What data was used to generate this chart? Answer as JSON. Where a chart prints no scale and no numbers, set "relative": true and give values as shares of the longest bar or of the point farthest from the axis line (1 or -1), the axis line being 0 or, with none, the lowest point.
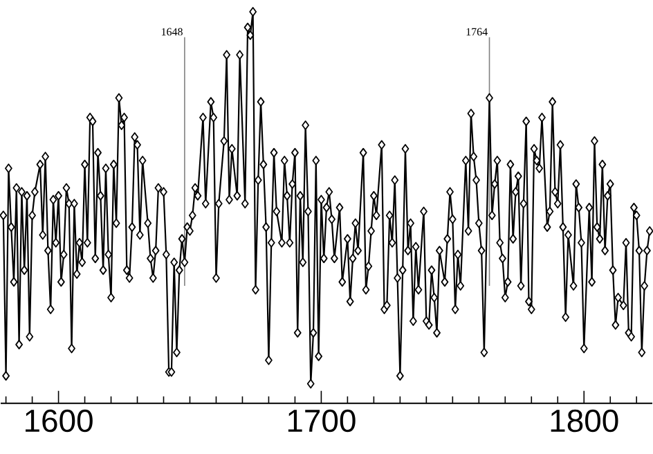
{
  "chart_data": {
    "type": "line",
    "relative": true,
    "color": "#000000",
    "marker": "diamond",
    "xlim": [
      1578,
      1826
    ],
    "xticks": [
      {
        "value": 1580,
        "label": null
      },
      {
        "value": 1590,
        "label": null
      },
      1600,
      {
        "value": 1610,
        "label": null
      },
      {
        "value": 1620,
        "label": null
      },
      {
        "value": 1630,
        "label": null
      },
      {
        "value": 1640,
        "label": null
      },
      {
        "value": 1650,
        "label": null
      },
      {
        "value": 1660,
        "label": null
      },
      {
        "value": 1670,
        "label": null
      },
      {
        "value": 1680,
        "label": null
      },
      {
        "value": 1690,
        "label": null
      },
      1700,
      {
        "value": 1710,
        "label": null
      },
      {
        "value": 1720,
        "label": null
      },
      {
        "value": 1730,
        "label": null
      },
      {
        "value": 1740,
        "label": null
      },
      {
        "value": 1750,
        "label": null
      },
      {
        "value": 1760,
        "label": null
      },
      {
        "value": 1770,
        "label": null
      },
      {
        "value": 1780,
        "label": null
      },
      {
        "value": 1790,
        "label": null
      },
      1800,
      {
        "value": 1810,
        "label": null
      },
      {
        "value": 1820,
        "label": null
      }
    ],
    "ref_lines": [
      {
        "axis": "x",
        "value": 1648,
        "label": "1648",
        "color": "#808080"
      },
      {
        "axis": "x",
        "value": 1764,
        "label": "1764",
        "color": "#808080"
      }
    ],
    "x": [
      1579,
      1580,
      1581,
      1582,
      1583,
      1584,
      1585,
      1586,
      1587,
      1588,
      1589,
      1590,
      1591,
      1593,
      1594,
      1595,
      1596,
      1597,
      1598,
      1599,
      1600,
      1601,
      1602,
      1603,
      1604,
      1605,
      1606,
      1607,
      1608,
      1609,
      1610,
      1611,
      1612,
      1613,
      1614,
      1615,
      1616,
      1617,
      1618,
      1619,
      1620,
      1621,
      1622,
      1623,
      1624,
      1625,
      1626,
      1627,
      1628,
      1629,
      1630,
      1631,
      1632,
      1634,
      1635,
      1636,
      1637,
      1638,
      1640,
      1641,
      1642,
      1643,
      1644,
      1645,
      1646,
      1647,
      1648,
      1649,
      1650,
      1651,
      1652,
      1653,
      1655,
      1656,
      1658,
      1659,
      1660,
      1661,
      1663,
      1664,
      1665,
      1666,
      1668,
      1669,
      1671,
      1672,
      1673,
      1674,
      1675,
      1676,
      1677,
      1678,
      1679,
      1680,
      1681,
      1682,
      1683,
      1685,
      1686,
      1687,
      1688,
      1689,
      1690,
      1691,
      1692,
      1693,
      1694,
      1695,
      1696,
      1697,
      1698,
      1699,
      1700,
      1701,
      1702,
      1703,
      1704,
      1705,
      1707,
      1708,
      1710,
      1711,
      1712,
      1713,
      1714,
      1716,
      1717,
      1718,
      1719,
      1720,
      1721,
      1723,
      1724,
      1725,
      1726,
      1727,
      1728,
      1729,
      1730,
      1731,
      1732,
      1733,
      1734,
      1735,
      1736,
      1737,
      1739,
      1740,
      1741,
      1742,
      1743,
      1744,
      1745,
      1747,
      1748,
      1749,
      1750,
      1751,
      1752,
      1753,
      1755,
      1756,
      1757,
      1758,
      1759,
      1760,
      1761,
      1762,
      1764,
      1765,
      1766,
      1767,
      1768,
      1769,
      1770,
      1771,
      1772,
      1773,
      1774,
      1775,
      1776,
      1777,
      1778,
      1779,
      1780,
      1781,
      1782,
      1783,
      1784,
      1786,
      1787,
      1788,
      1789,
      1790,
      1791,
      1792,
      1793,
      1794,
      1796,
      1797,
      1798,
      1799,
      1800,
      1802,
      1803,
      1804,
      1805,
      1806,
      1807,
      1808,
      1809,
      1810,
      1811,
      1812,
      1813,
      1815,
      1816,
      1817,
      1818,
      1819,
      1820,
      1821,
      1822,
      1823,
      1824,
      1825
    ],
    "values": [
      0.48,
      0.07,
      0.6,
      0.45,
      0.31,
      0.55,
      0.15,
      0.54,
      0.34,
      0.53,
      0.17,
      0.48,
      0.54,
      0.61,
      0.43,
      0.63,
      0.39,
      0.24,
      0.52,
      0.41,
      0.53,
      0.31,
      0.38,
      0.55,
      0.51,
      0.14,
      0.51,
      0.33,
      0.41,
      0.36,
      0.61,
      0.41,
      0.73,
      0.72,
      0.37,
      0.64,
      0.53,
      0.34,
      0.6,
      0.38,
      0.27,
      0.61,
      0.46,
      0.78,
      0.71,
      0.73,
      0.34,
      0.32,
      0.45,
      0.68,
      0.66,
      0.43,
      0.62,
      0.46,
      0.37,
      0.32,
      0.39,
      0.55,
      0.54,
      0.38,
      0.08,
      0.08,
      0.36,
      0.13,
      0.34,
      0.42,
      0.36,
      0.45,
      0.44,
      0.48,
      0.55,
      0.53,
      0.73,
      0.51,
      0.77,
      0.73,
      0.32,
      0.51,
      0.67,
      0.89,
      0.52,
      0.65,
      0.53,
      0.89,
      0.51,
      0.96,
      0.94,
      1,
      0.29,
      0.57,
      0.77,
      0.61,
      0.45,
      0.11,
      0.41,
      0.64,
      0.49,
      0.41,
      0.62,
      0.53,
      0.41,
      0.56,
      0.64,
      0.18,
      0.53,
      0.36,
      0.71,
      0.49,
      0.05,
      0.18,
      0.62,
      0.12,
      0.52,
      0.37,
      0.5,
      0.54,
      0.47,
      0.37,
      0.5,
      0.31,
      0.42,
      0.26,
      0.37,
      0.46,
      0.39,
      0.64,
      0.29,
      0.35,
      0.44,
      0.53,
      0.48,
      0.66,
      0.24,
      0.25,
      0.48,
      0.41,
      0.57,
      0.32,
      0.07,
      0.34,
      0.65,
      0.39,
      0.46,
      0.21,
      0.4,
      0.29,
      0.49,
      0.21,
      0.2,
      0.34,
      0.27,
      0.18,
      0.39,
      0.31,
      0.42,
      0.54,
      0.47,
      0.24,
      0.38,
      0.3,
      0.62,
      0.44,
      0.74,
      0.63,
      0.57,
      0.46,
      0.39,
      0.13,
      0.78,
      0.48,
      0.56,
      0.62,
      0.41,
      0.37,
      0.27,
      0.31,
      0.61,
      0.42,
      0.54,
      0.58,
      0.3,
      0.51,
      0.72,
      0.26,
      0.24,
      0.65,
      0.62,
      0.6,
      0.73,
      0.45,
      0.49,
      0.77,
      0.54,
      0.51,
      0.66,
      0.45,
      0.22,
      0.43,
      0.3,
      0.56,
      0.5,
      0.41,
      0.14,
      0.5,
      0.31,
      0.67,
      0.45,
      0.42,
      0.61,
      0.39,
      0.53,
      0.56,
      0.34,
      0.2,
      0.27,
      0.25,
      0.41,
      0.18,
      0.17,
      0.5,
      0.48,
      0.39,
      0.13,
      0.3,
      0.39,
      0.44
    ]
  }
}
